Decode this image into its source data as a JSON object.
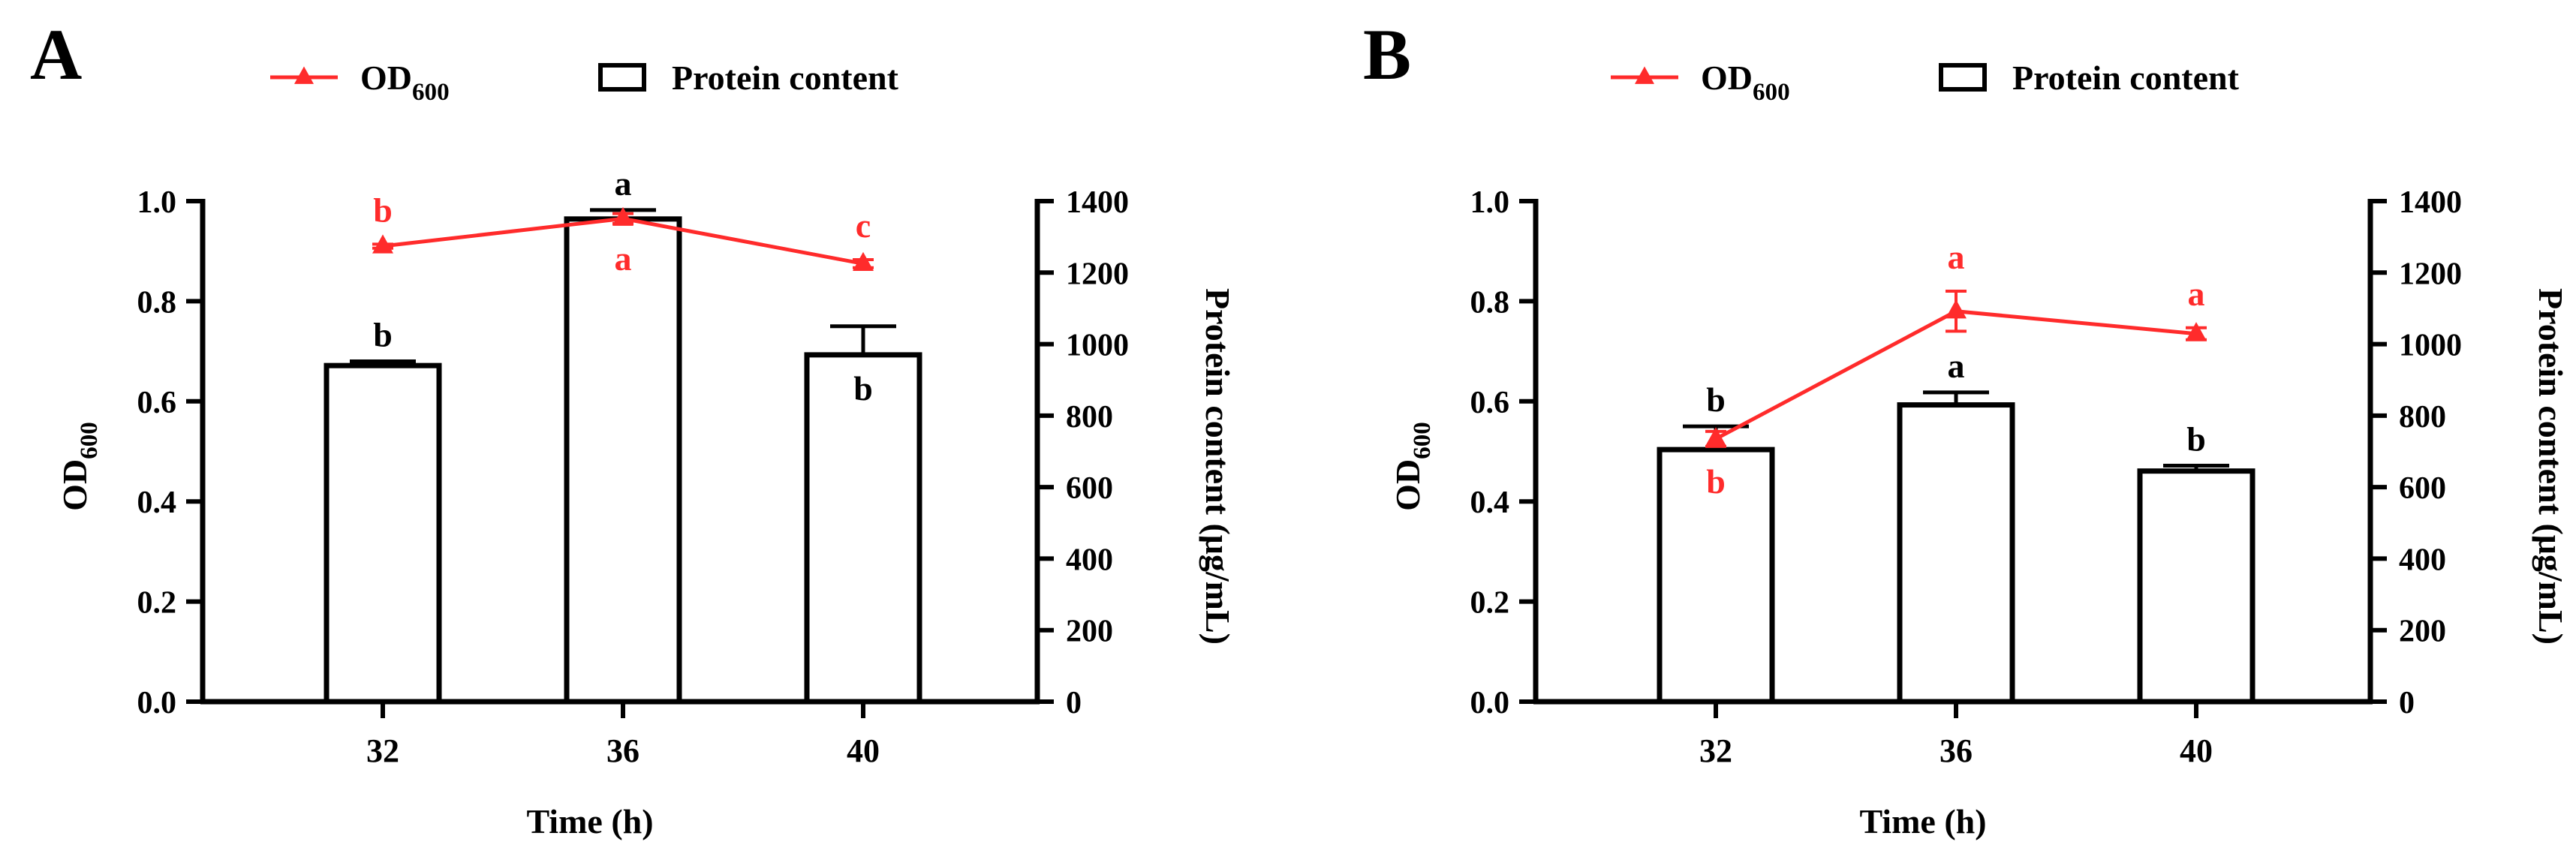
{
  "colors": {
    "od": "#ff2b2b",
    "bar": "#000000",
    "text": "#000000"
  },
  "legend": {
    "od_main": "OD",
    "od_sub": "600",
    "protein": "Protein content"
  },
  "chart_data": [
    {
      "panel_label": "A",
      "type": "bar+line",
      "xlabel": "Time (h)",
      "ylabel_left_main": "OD",
      "ylabel_left_sub": "600",
      "ylabel_right": "Protein content (μg/mL)",
      "categories": [
        "32",
        "36",
        "40"
      ],
      "left_ylim": [
        0,
        1.0
      ],
      "left_ticks": [
        "0.0",
        "0.2",
        "0.4",
        "0.6",
        "0.8",
        "1.0"
      ],
      "right_ylim": [
        0,
        1400
      ],
      "right_ticks": [
        "0",
        "200",
        "400",
        "600",
        "800",
        "1000",
        "1200",
        "1400"
      ],
      "series": [
        {
          "name": "Protein content",
          "axis": "right",
          "kind": "bar",
          "values": [
            940,
            1350,
            970
          ],
          "errors": [
            12,
            25,
            80
          ],
          "letters": [
            "b",
            "a",
            "b"
          ],
          "letter_pos": [
            "above",
            "above",
            "below"
          ]
        },
        {
          "name": "OD600",
          "axis": "left",
          "kind": "line",
          "values": [
            0.91,
            0.965,
            0.875
          ],
          "errors": [
            0.004,
            0.01,
            0.008
          ],
          "letters": [
            "b",
            "a",
            "c"
          ],
          "letter_pos": [
            "above",
            "below",
            "above"
          ]
        }
      ]
    },
    {
      "panel_label": "B",
      "type": "bar+line",
      "xlabel": "Time (h)",
      "ylabel_left_main": "OD",
      "ylabel_left_sub": "600",
      "ylabel_right": "Protein content (μg/mL)",
      "categories": [
        "32",
        "36",
        "40"
      ],
      "left_ylim": [
        0,
        1.0
      ],
      "left_ticks": [
        "0.0",
        "0.2",
        "0.4",
        "0.6",
        "0.8",
        "1.0"
      ],
      "right_ylim": [
        0,
        1400
      ],
      "right_ticks": [
        "0",
        "200",
        "400",
        "600",
        "800",
        "1000",
        "1200",
        "1400"
      ],
      "series": [
        {
          "name": "Protein content",
          "axis": "right",
          "kind": "bar",
          "values": [
            705,
            830,
            645
          ],
          "errors": [
            65,
            35,
            15
          ],
          "letters": [
            "b",
            "a",
            "b"
          ],
          "letter_pos": [
            "above",
            "above",
            "above"
          ]
        },
        {
          "name": "OD600",
          "axis": "left",
          "kind": "line",
          "values": [
            0.525,
            0.78,
            0.735
          ],
          "errors": [
            0.015,
            0.04,
            0.012
          ],
          "letters": [
            "b",
            "a",
            "a"
          ],
          "letter_pos": [
            "below",
            "above",
            "above"
          ]
        }
      ]
    }
  ]
}
